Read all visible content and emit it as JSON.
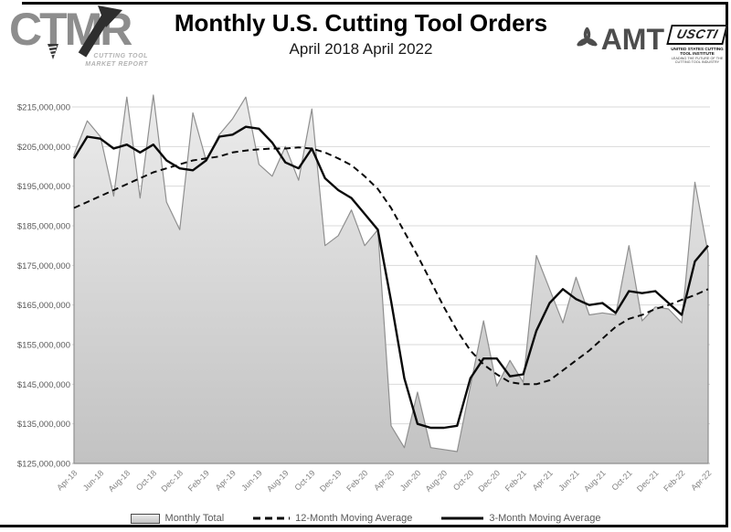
{
  "header": {
    "logo": {
      "text": "CTMR",
      "caption_line1": "CUTTING TOOL",
      "caption_line2": "MARKET REPORT"
    },
    "title": "Monthly U.S. Cutting Tool Orders",
    "subtitle": "April 2018 April 2022",
    "amt_logo_text": "AMT",
    "uscti": {
      "box_text": "USCTI",
      "line1": "UNITED STATES CUTTING TOOL INSTITUTE",
      "line2": "LEADING THE FUTURE OF THE CUTTING TOOL INDUSTRY"
    }
  },
  "legend": [
    {
      "label": "Monthly Total"
    },
    {
      "label": "12-Month Moving Average"
    },
    {
      "label": "3-Month Moving Average"
    }
  ],
  "axes": {
    "y_tick_labels": [
      "$215,000,000",
      "$205,000,000",
      "$195,000,000",
      "$185,000,000",
      "$175,000,000",
      "$165,000,000",
      "$155,000,000",
      "$145,000,000",
      "$135,000,000",
      "$125,000,000"
    ],
    "x_tick_labels": [
      "Apr-18",
      "Jun-18",
      "Aug-18",
      "Oct-18",
      "Dec-18",
      "Feb-19",
      "Apr-19",
      "Jun-19",
      "Aug-19",
      "Oct-19",
      "Dec-19",
      "Feb-20",
      "Apr-20",
      "Jun-20",
      "Aug-20",
      "Oct-20",
      "Dec-20",
      "Feb-21",
      "Apr-21",
      "Jun-21",
      "Aug-21",
      "Oct-21",
      "Dec-21",
      "Feb-22",
      "Apr-22"
    ]
  },
  "chart_data": {
    "type": "area",
    "title": "Monthly U.S. Cutting Tool Orders",
    "subtitle": "April 2018 April 2022",
    "unit": "USD (millions)",
    "ylim_musd": [
      125,
      215
    ],
    "y_tick_step_musd": 10,
    "grid": "horizontal",
    "legend_position": "bottom",
    "months": [
      "Apr-18",
      "May-18",
      "Jun-18",
      "Jul-18",
      "Aug-18",
      "Sep-18",
      "Oct-18",
      "Nov-18",
      "Dec-18",
      "Jan-19",
      "Feb-19",
      "Mar-19",
      "Apr-19",
      "May-19",
      "Jun-19",
      "Jul-19",
      "Aug-19",
      "Sep-19",
      "Oct-19",
      "Nov-19",
      "Dec-19",
      "Jan-20",
      "Feb-20",
      "Mar-20",
      "Apr-20",
      "May-20",
      "Jun-20",
      "Jul-20",
      "Aug-20",
      "Sep-20",
      "Oct-20",
      "Nov-20",
      "Dec-20",
      "Jan-21",
      "Feb-21",
      "Mar-21",
      "Apr-21",
      "May-21",
      "Jun-21",
      "Jul-21",
      "Aug-21",
      "Sep-21",
      "Oct-21",
      "Nov-21",
      "Dec-21",
      "Jan-22",
      "Feb-22",
      "Mar-22",
      "Apr-22"
    ],
    "series": [
      {
        "name": "Monthly Total",
        "style": "area",
        "values_musd": [
          203,
          211.5,
          207.5,
          192.5,
          217.5,
          192,
          218,
          191,
          184,
          213.5,
          201.5,
          208,
          212,
          217.5,
          200.5,
          197.5,
          205,
          196.5,
          214.5,
          180,
          182.5,
          189,
          180,
          184,
          134.5,
          129,
          143,
          129,
          128.5,
          128,
          144.5,
          161,
          144.5,
          151,
          145.5,
          177.5,
          169,
          160.5,
          172,
          162.5,
          163,
          162.5,
          180,
          161,
          164.5,
          164,
          160.5,
          196,
          178
        ]
      },
      {
        "name": "12-Month Moving Average",
        "style": "dashed-line",
        "values_musd": [
          189.5,
          191,
          192.5,
          194,
          195.5,
          197,
          198.5,
          199.5,
          200.5,
          201.5,
          202,
          202.5,
          203.5,
          204,
          204.3,
          204.5,
          204.5,
          204.8,
          204.5,
          203.5,
          202,
          200.3,
          197.5,
          194.3,
          189.5,
          183.5,
          177.5,
          171,
          164.5,
          158.5,
          153.5,
          150,
          147.5,
          145.5,
          145,
          145,
          146,
          148.5,
          151,
          153.5,
          156.5,
          159.5,
          161.5,
          162.5,
          164,
          165,
          166.3,
          167.5,
          169
        ]
      },
      {
        "name": "3-Month Moving Average",
        "style": "solid-line",
        "values_musd": [
          202,
          207.5,
          207,
          204.5,
          205.5,
          203.5,
          205.5,
          201.5,
          199.5,
          199,
          201.5,
          207.5,
          208,
          210,
          209.5,
          206,
          201,
          199.5,
          204.5,
          197,
          194,
          192,
          188,
          184,
          166,
          146.5,
          135,
          134,
          134,
          134.5,
          146.5,
          151.5,
          151.5,
          147,
          147.5,
          158.5,
          165.5,
          169,
          166.5,
          165,
          165.5,
          163,
          168.5,
          168,
          168.5,
          165.5,
          162.5,
          176,
          180
        ]
      }
    ],
    "colors": {
      "area_fill_top": "#ececec",
      "area_fill_bottom": "#c2c2c2",
      "area_outline": "#8f8f8f",
      "ma_line": "#0a0a0a",
      "grid": "#d9d9d9",
      "axis": "#b5b5b5",
      "y_tick_text": "#595959",
      "x_tick_text": "#808080"
    }
  }
}
